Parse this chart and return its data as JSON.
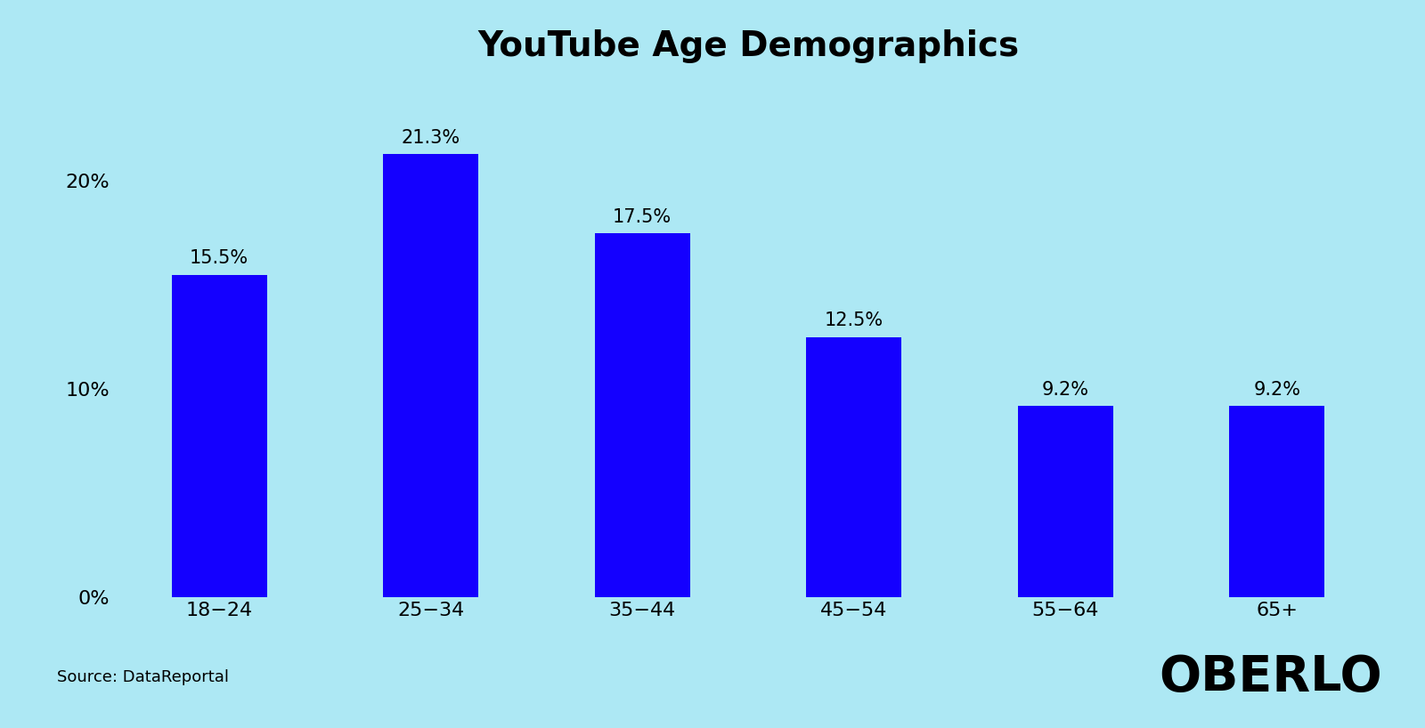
{
  "categories": [
    "18−24",
    "25−34",
    "35−44",
    "45−54",
    "55−64",
    "65+"
  ],
  "values": [
    15.5,
    21.3,
    17.5,
    12.5,
    9.2,
    9.2
  ],
  "bar_color": "#1400FF",
  "background_color": "#ADE8F4",
  "title": "YouTube Age Demographics",
  "title_fontsize": 28,
  "title_fontweight": "bold",
  "yticks": [
    0,
    10,
    20
  ],
  "ytick_labels": [
    "0%",
    "10%",
    "20%"
  ],
  "ylim": [
    0,
    24.5
  ],
  "label_fontsize": 15,
  "tick_fontsize": 16,
  "xlabel_fontsize": 16,
  "source_text": "Source: DataReportal",
  "source_fontsize": 13,
  "oberlo_text": "OBERLO",
  "oberlo_fontsize": 40,
  "bar_width": 0.45
}
